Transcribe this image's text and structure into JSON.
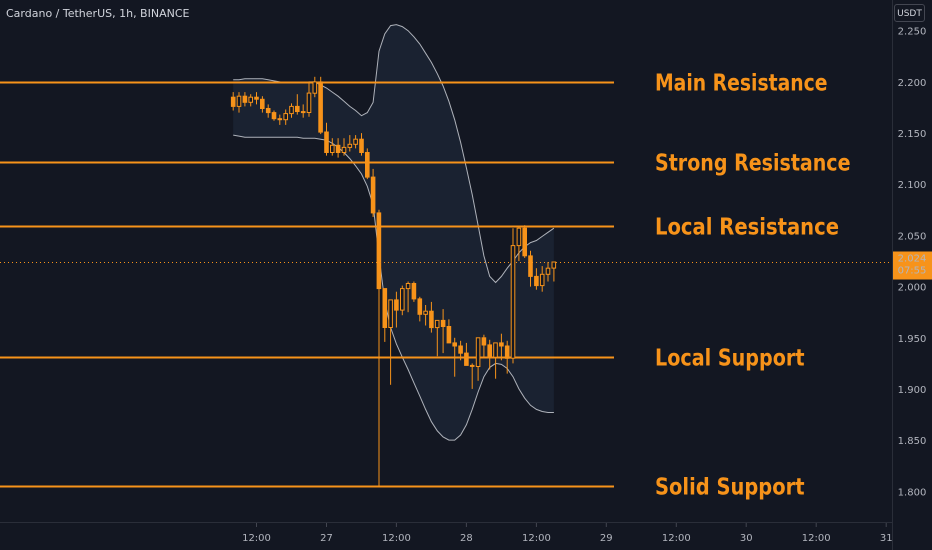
{
  "header": {
    "title": "Cardano / TetherUS, 1h, BINANCE"
  },
  "currency_button": {
    "label": "USDT"
  },
  "last_price": {
    "value": "2.024",
    "countdown": "07:55"
  },
  "colors": {
    "background": "#131722",
    "candle": "#f7931a",
    "levels": "#f7931a",
    "band_fill": "#1a2231",
    "band_line": "#c9ccd3",
    "text": "#b2b5be"
  },
  "chart_data": {
    "type": "candlestick",
    "title": "Cardano / TetherUS, 1h, BINANCE",
    "xlabel": "",
    "ylabel": "",
    "ylim": [
      1.77,
      2.28
    ],
    "x_range_hours": [
      -56,
      97
    ],
    "y_ticks": [
      "2.250",
      "2.200",
      "2.150",
      "2.100",
      "2.050",
      "2.000",
      "1.950",
      "1.900",
      "1.850",
      "1.800"
    ],
    "y_tick_values": [
      2.25,
      2.2,
      2.15,
      2.1,
      2.05,
      2.0,
      1.95,
      1.9,
      1.85,
      1.8
    ],
    "x_ticks": [
      "12:00",
      "27",
      "12:00",
      "28",
      "12:00",
      "29",
      "12:00",
      "30",
      "12:00",
      "31"
    ],
    "x_tick_hours": [
      -12,
      0,
      12,
      24,
      36,
      48,
      60,
      72,
      84,
      96
    ],
    "levels": [
      {
        "label": "Main Resistance",
        "value": 2.2
      },
      {
        "label": "Strong Resistance",
        "value": 2.122
      },
      {
        "label": "Local Resistance",
        "value": 2.059
      },
      {
        "label": "Local Support",
        "value": 1.931
      },
      {
        "label": "Solid Support",
        "value": 1.805
      }
    ],
    "candles": {
      "start_hour": -16,
      "step_hours": 1,
      "open": [
        2.185,
        2.176,
        2.186,
        2.18,
        2.185,
        2.183,
        2.174,
        2.17,
        2.164,
        2.163,
        2.169,
        2.176,
        2.171,
        2.17,
        2.189,
        2.2,
        2.151,
        2.131,
        2.138,
        2.131,
        2.136,
        2.139,
        2.144,
        2.131,
        2.107,
        2.072,
        1.998,
        1.96,
        1.987,
        1.977,
        1.998,
        2.003,
        1.988,
        1.973,
        1.976,
        1.96,
        1.967,
        1.961,
        1.945,
        1.942,
        1.935,
        1.923,
        1.922,
        1.95,
        1.943,
        1.931,
        1.945,
        1.942,
        1.93,
        2.04,
        2.057,
        2.03,
        2.01,
        2.001,
        2.012,
        2.018
      ],
      "high": [
        2.19,
        2.19,
        2.19,
        2.188,
        2.19,
        2.186,
        2.178,
        2.172,
        2.168,
        2.173,
        2.179,
        2.188,
        2.178,
        2.2,
        2.205,
        2.205,
        2.16,
        2.145,
        2.145,
        2.145,
        2.148,
        2.148,
        2.15,
        2.135,
        2.115,
        2.075,
        1.998,
        1.983,
        1.995,
        2.001,
        2.005,
        2.005,
        1.99,
        1.982,
        1.985,
        1.965,
        1.978,
        1.968,
        1.95,
        1.947,
        1.945,
        1.925,
        1.945,
        1.953,
        1.948,
        1.945,
        1.954,
        1.947,
        2.057,
        2.059,
        2.06,
        2.035,
        2.018,
        2.02,
        2.024,
        2.022
      ],
      "low": [
        2.172,
        2.17,
        2.176,
        2.176,
        2.178,
        2.17,
        2.165,
        2.162,
        2.158,
        2.158,
        2.165,
        2.168,
        2.165,
        2.166,
        2.185,
        2.149,
        2.128,
        2.128,
        2.126,
        2.128,
        2.132,
        2.135,
        2.128,
        2.105,
        2.068,
        1.805,
        1.946,
        1.904,
        1.96,
        1.972,
        1.975,
        1.985,
        1.966,
        1.962,
        1.955,
        1.932,
        1.935,
        1.946,
        1.912,
        1.928,
        1.925,
        1.9,
        1.908,
        1.93,
        1.919,
        1.91,
        1.928,
        1.915,
        1.925,
        2.025,
        2.028,
        2.0,
        1.997,
        1.995,
        2.005,
        2.005
      ],
      "close": [
        2.176,
        2.186,
        2.18,
        2.185,
        2.183,
        2.174,
        2.17,
        2.164,
        2.163,
        2.169,
        2.176,
        2.171,
        2.17,
        2.189,
        2.2,
        2.151,
        2.131,
        2.138,
        2.131,
        2.136,
        2.139,
        2.144,
        2.131,
        2.107,
        2.072,
        1.998,
        1.96,
        1.987,
        1.977,
        1.998,
        2.003,
        1.988,
        1.973,
        1.976,
        1.96,
        1.967,
        1.961,
        1.945,
        1.942,
        1.935,
        1.923,
        1.922,
        1.95,
        1.943,
        1.931,
        1.945,
        1.942,
        1.93,
        2.04,
        2.057,
        2.03,
        2.01,
        2.001,
        2.012,
        2.018,
        2.024
      ]
    },
    "bollinger": {
      "start_hour": -16,
      "step_hours": 1,
      "upper": [
        2.202,
        2.202,
        2.203,
        2.203,
        2.203,
        2.203,
        2.202,
        2.201,
        2.2,
        2.199,
        2.199,
        2.199,
        2.199,
        2.2,
        2.2,
        2.197,
        2.194,
        2.19,
        2.186,
        2.181,
        2.176,
        2.172,
        2.167,
        2.17,
        2.18,
        2.23,
        2.247,
        2.255,
        2.256,
        2.254,
        2.25,
        2.244,
        2.237,
        2.228,
        2.219,
        2.208,
        2.196,
        2.181,
        2.163,
        2.141,
        2.116,
        2.09,
        2.06,
        2.03,
        2.01,
        2.004,
        2.01,
        2.018,
        2.025,
        2.033,
        2.039,
        2.043,
        2.045,
        2.049,
        2.053,
        2.057
      ],
      "basis": [
        2.175,
        2.175,
        2.174,
        2.174,
        2.173,
        2.173,
        2.172,
        2.172,
        2.171,
        2.171,
        2.17,
        2.169,
        2.169,
        2.169,
        2.168,
        2.167,
        2.165,
        2.163,
        2.16,
        2.156,
        2.152,
        2.147,
        2.141,
        2.134,
        2.125,
        2.115,
        2.104,
        2.093,
        2.082,
        2.071,
        2.06,
        2.049,
        2.038,
        2.027,
        2.016,
        2.005,
        1.995,
        1.986,
        1.978,
        1.971,
        1.964,
        1.958,
        1.952,
        1.947,
        1.943,
        1.94,
        1.94,
        1.941,
        1.943,
        1.946,
        1.95,
        1.954,
        1.957,
        1.96,
        1.964,
        1.968
      ],
      "lower": [
        2.148,
        2.147,
        2.146,
        2.146,
        2.146,
        2.146,
        2.146,
        2.146,
        2.146,
        2.146,
        2.146,
        2.146,
        2.145,
        2.145,
        2.145,
        2.144,
        2.143,
        2.14,
        2.136,
        2.131,
        2.125,
        2.118,
        2.11,
        2.098,
        2.08,
        2.03,
        1.985,
        1.96,
        1.944,
        1.931,
        1.919,
        1.906,
        1.893,
        1.88,
        1.868,
        1.859,
        1.853,
        1.85,
        1.85,
        1.855,
        1.865,
        1.88,
        1.897,
        1.912,
        1.921,
        1.925,
        1.924,
        1.92,
        1.912,
        1.9,
        1.891,
        1.884,
        1.88,
        1.878,
        1.877,
        1.877
      ]
    }
  }
}
